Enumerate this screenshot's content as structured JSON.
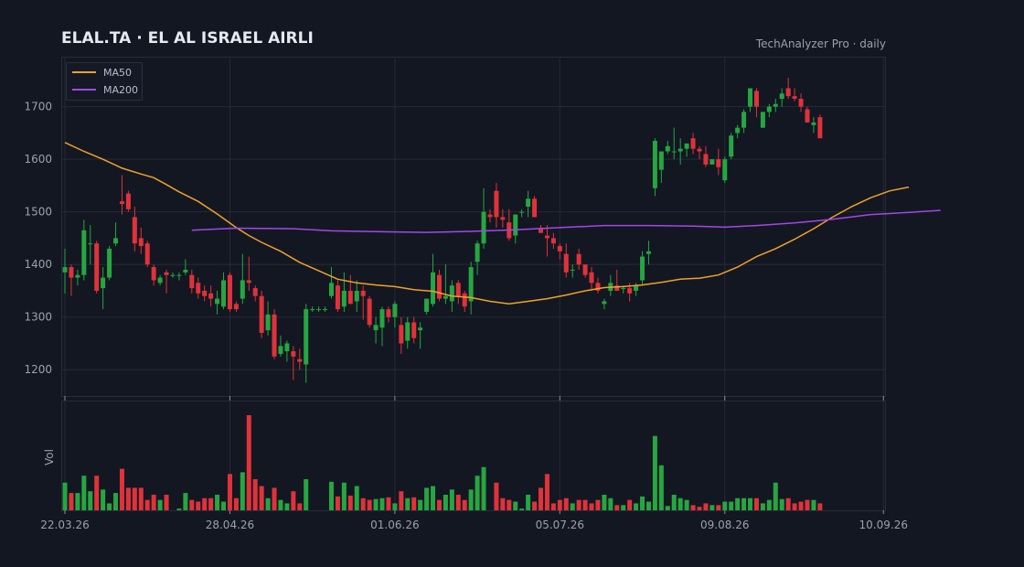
{
  "header": {
    "title": "ELAL.TA  ·  EL AL ISRAEL AIRLI",
    "brand": "TechAnalyzer Pro · daily"
  },
  "colors": {
    "up": "#26a641",
    "down": "#e0323a",
    "ma50": "#f0a12a",
    "ma200": "#a347e8",
    "grid": "#242a36",
    "text": "#9aa1ad"
  },
  "chart_data": {
    "type": "candlestick",
    "price_panel": {
      "ylim": [
        1150,
        1795
      ],
      "yticks": [
        1200,
        1300,
        1400,
        1500,
        1600,
        1700
      ]
    },
    "volume_panel": {
      "ylabel": "Vol"
    },
    "xticks": [
      {
        "label": "22.03.26",
        "index": 0
      },
      {
        "label": "28.04.26",
        "index": 26
      },
      {
        "label": "01.06.26",
        "index": 52
      },
      {
        "label": "05.07.26",
        "index": 78
      },
      {
        "label": "09.08.26",
        "index": 104
      },
      {
        "label": "10.09.26",
        "index": 129
      }
    ],
    "legend": {
      "position": "top-left",
      "entries": [
        {
          "name": "MA50",
          "color": "#f0a12a"
        },
        {
          "name": "MA200",
          "color": "#a347e8"
        }
      ]
    },
    "candles_ohlcv": [
      [
        1385,
        1430,
        1345,
        1395,
        32
      ],
      [
        1395,
        1400,
        1340,
        1375,
        20
      ],
      [
        1375,
        1390,
        1360,
        1380,
        20
      ],
      [
        1380,
        1485,
        1370,
        1465,
        40
      ],
      [
        1440,
        1475,
        1400,
        1440,
        22
      ],
      [
        1440,
        1445,
        1345,
        1350,
        40
      ],
      [
        1355,
        1395,
        1315,
        1375,
        24
      ],
      [
        1375,
        1435,
        1370,
        1430,
        8
      ],
      [
        1440,
        1480,
        1435,
        1450,
        20
      ],
      [
        1520,
        1570,
        1495,
        1515,
        48
      ],
      [
        1535,
        1540,
        1500,
        1505,
        26
      ],
      [
        1490,
        1510,
        1425,
        1440,
        26
      ],
      [
        1450,
        1470,
        1420,
        1435,
        26
      ],
      [
        1440,
        1445,
        1395,
        1400,
        12
      ],
      [
        1395,
        1400,
        1360,
        1370,
        18
      ],
      [
        1365,
        1380,
        1360,
        1375,
        12
      ],
      [
        1385,
        1390,
        1345,
        1380,
        18
      ],
      [
        1380,
        1385,
        1375,
        1380,
        0
      ],
      [
        1380,
        1385,
        1370,
        1380,
        2
      ],
      [
        1385,
        1410,
        1380,
        1390,
        20
      ],
      [
        1380,
        1390,
        1345,
        1355,
        12
      ],
      [
        1365,
        1375,
        1335,
        1345,
        10
      ],
      [
        1350,
        1360,
        1330,
        1340,
        14
      ],
      [
        1345,
        1360,
        1320,
        1335,
        14
      ],
      [
        1325,
        1350,
        1305,
        1335,
        18
      ],
      [
        1320,
        1385,
        1315,
        1370,
        10
      ],
      [
        1380,
        1385,
        1310,
        1315,
        42
      ],
      [
        1325,
        1330,
        1310,
        1315,
        14
      ],
      [
        1335,
        1420,
        1325,
        1370,
        44
      ],
      [
        1370,
        1415,
        1350,
        1365,
        110
      ],
      [
        1355,
        1360,
        1330,
        1340,
        36
      ],
      [
        1340,
        1350,
        1260,
        1270,
        28
      ],
      [
        1275,
        1330,
        1265,
        1305,
        14
      ],
      [
        1305,
        1315,
        1220,
        1225,
        26
      ],
      [
        1230,
        1265,
        1225,
        1245,
        12
      ],
      [
        1235,
        1255,
        1215,
        1250,
        8
      ],
      [
        1235,
        1245,
        1180,
        1225,
        22
      ],
      [
        1220,
        1240,
        1200,
        1215,
        8
      ],
      [
        1210,
        1325,
        1175,
        1315,
        36
      ],
      [
        1315,
        1320,
        1310,
        1315,
        0
      ],
      [
        1315,
        1320,
        1310,
        1315,
        0
      ],
      [
        1315,
        1320,
        1310,
        1315,
        0
      ],
      [
        1340,
        1395,
        1335,
        1365,
        33
      ],
      [
        1360,
        1370,
        1310,
        1315,
        16
      ],
      [
        1320,
        1385,
        1310,
        1350,
        32
      ],
      [
        1350,
        1380,
        1325,
        1325,
        17
      ],
      [
        1330,
        1370,
        1310,
        1350,
        28
      ],
      [
        1350,
        1360,
        1295,
        1340,
        14
      ],
      [
        1335,
        1340,
        1280,
        1285,
        12
      ],
      [
        1275,
        1300,
        1250,
        1285,
        13
      ],
      [
        1280,
        1320,
        1245,
        1315,
        14
      ],
      [
        1315,
        1320,
        1290,
        1300,
        15
      ],
      [
        1300,
        1330,
        1280,
        1325,
        8
      ],
      [
        1285,
        1300,
        1230,
        1250,
        22
      ],
      [
        1255,
        1300,
        1240,
        1290,
        14
      ],
      [
        1290,
        1300,
        1250,
        1260,
        15
      ],
      [
        1275,
        1290,
        1240,
        1280,
        12
      ],
      [
        1310,
        1325,
        1305,
        1335,
        26
      ],
      [
        1325,
        1420,
        1320,
        1385,
        28
      ],
      [
        1380,
        1390,
        1330,
        1335,
        12
      ],
      [
        1335,
        1400,
        1325,
        1340,
        18
      ],
      [
        1330,
        1370,
        1310,
        1360,
        24
      ],
      [
        1365,
        1370,
        1325,
        1340,
        18
      ],
      [
        1345,
        1350,
        1310,
        1320,
        12
      ],
      [
        1330,
        1405,
        1305,
        1395,
        24
      ],
      [
        1405,
        1445,
        1380,
        1440,
        40
      ],
      [
        1440,
        1545,
        1430,
        1500,
        50
      ],
      [
        1495,
        1505,
        1480,
        1490,
        0
      ],
      [
        1540,
        1555,
        1470,
        1490,
        32
      ],
      [
        1490,
        1505,
        1470,
        1485,
        14
      ],
      [
        1480,
        1505,
        1445,
        1450,
        12
      ],
      [
        1455,
        1495,
        1440,
        1495,
        10
      ],
      [
        1500,
        1505,
        1490,
        1500,
        2
      ],
      [
        1510,
        1540,
        1490,
        1525,
        18
      ],
      [
        1525,
        1530,
        1490,
        1490,
        10
      ],
      [
        1470,
        1475,
        1460,
        1460,
        26
      ],
      [
        1455,
        1475,
        1415,
        1450,
        42
      ],
      [
        1450,
        1460,
        1430,
        1440,
        8
      ],
      [
        1435,
        1440,
        1410,
        1425,
        12
      ],
      [
        1420,
        1440,
        1375,
        1385,
        14
      ],
      [
        1390,
        1400,
        1375,
        1390,
        8
      ],
      [
        1420,
        1430,
        1390,
        1400,
        12
      ],
      [
        1400,
        1400,
        1375,
        1380,
        12
      ],
      [
        1385,
        1395,
        1350,
        1365,
        8
      ],
      [
        1365,
        1375,
        1345,
        1350,
        12
      ],
      [
        1325,
        1335,
        1315,
        1330,
        18
      ],
      [
        1350,
        1380,
        1340,
        1365,
        14
      ],
      [
        1360,
        1390,
        1350,
        1350,
        6
      ],
      [
        1355,
        1360,
        1345,
        1355,
        6
      ],
      [
        1355,
        1365,
        1330,
        1345,
        12
      ],
      [
        1350,
        1365,
        1340,
        1360,
        8
      ],
      [
        1370,
        1425,
        1360,
        1415,
        16
      ],
      [
        1420,
        1445,
        1400,
        1425,
        10
      ],
      [
        1545,
        1640,
        1530,
        1635,
        86
      ],
      [
        1580,
        1610,
        1555,
        1615,
        52
      ],
      [
        1615,
        1635,
        1610,
        1625,
        5
      ],
      [
        1615,
        1660,
        1600,
        1615,
        18
      ],
      [
        1615,
        1640,
        1590,
        1620,
        14
      ],
      [
        1620,
        1630,
        1605,
        1630,
        12
      ],
      [
        1640,
        1650,
        1610,
        1620,
        6
      ],
      [
        1620,
        1625,
        1600,
        1615,
        4
      ],
      [
        1610,
        1625,
        1585,
        1590,
        8
      ],
      [
        1590,
        1600,
        1590,
        1600,
        6
      ],
      [
        1600,
        1620,
        1570,
        1585,
        6
      ],
      [
        1560,
        1605,
        1555,
        1600,
        10
      ],
      [
        1605,
        1650,
        1600,
        1645,
        10
      ],
      [
        1650,
        1665,
        1640,
        1660,
        14
      ],
      [
        1660,
        1695,
        1650,
        1690,
        14
      ],
      [
        1700,
        1735,
        1690,
        1735,
        14
      ],
      [
        1730,
        1735,
        1680,
        1700,
        14
      ],
      [
        1660,
        1690,
        1660,
        1690,
        8
      ],
      [
        1690,
        1705,
        1680,
        1700,
        12
      ],
      [
        1700,
        1715,
        1690,
        1705,
        32
      ],
      [
        1715,
        1735,
        1700,
        1725,
        13
      ],
      [
        1735,
        1755,
        1715,
        1720,
        14
      ],
      [
        1720,
        1735,
        1710,
        1715,
        8
      ],
      [
        1715,
        1725,
        1690,
        1700,
        10
      ],
      [
        1695,
        1700,
        1670,
        1670,
        12
      ],
      [
        1665,
        1680,
        1650,
        1670,
        12
      ],
      [
        1680,
        1685,
        1640,
        1640,
        8
      ]
    ],
    "ma50": [
      [
        0,
        1632
      ],
      [
        3,
        1615
      ],
      [
        6,
        1600
      ],
      [
        9,
        1583
      ],
      [
        12,
        1572
      ],
      [
        14,
        1565
      ],
      [
        16,
        1552
      ],
      [
        18,
        1538
      ],
      [
        21,
        1520
      ],
      [
        24,
        1496
      ],
      [
        27,
        1470
      ],
      [
        29,
        1455
      ],
      [
        31,
        1442
      ],
      [
        34,
        1425
      ],
      [
        37,
        1404
      ],
      [
        40,
        1388
      ],
      [
        43,
        1372
      ],
      [
        46,
        1365
      ],
      [
        49,
        1361
      ],
      [
        52,
        1358
      ],
      [
        55,
        1352
      ],
      [
        58,
        1349
      ],
      [
        61,
        1340
      ],
      [
        64,
        1337
      ],
      [
        67,
        1330
      ],
      [
        70,
        1325
      ],
      [
        73,
        1330
      ],
      [
        76,
        1335
      ],
      [
        79,
        1342
      ],
      [
        82,
        1350
      ],
      [
        85,
        1356
      ],
      [
        88,
        1358
      ],
      [
        91,
        1361
      ],
      [
        94,
        1366
      ],
      [
        97,
        1372
      ],
      [
        100,
        1374
      ],
      [
        103,
        1380
      ],
      [
        106,
        1395
      ],
      [
        109,
        1415
      ],
      [
        112,
        1430
      ],
      [
        115,
        1448
      ],
      [
        118,
        1468
      ],
      [
        121,
        1490
      ],
      [
        124,
        1510
      ],
      [
        127,
        1527
      ],
      [
        130,
        1540
      ],
      [
        133,
        1547
      ]
    ],
    "ma200": [
      [
        20,
        1465
      ],
      [
        27,
        1469
      ],
      [
        36,
        1468
      ],
      [
        42,
        1464
      ],
      [
        51,
        1462
      ],
      [
        57,
        1461
      ],
      [
        64,
        1463
      ],
      [
        71,
        1466
      ],
      [
        78,
        1470
      ],
      [
        85,
        1474
      ],
      [
        92,
        1474
      ],
      [
        99,
        1473
      ],
      [
        104,
        1471
      ],
      [
        109,
        1474
      ],
      [
        115,
        1479
      ],
      [
        121,
        1486
      ],
      [
        127,
        1495
      ],
      [
        133,
        1499
      ],
      [
        138,
        1503
      ]
    ]
  }
}
